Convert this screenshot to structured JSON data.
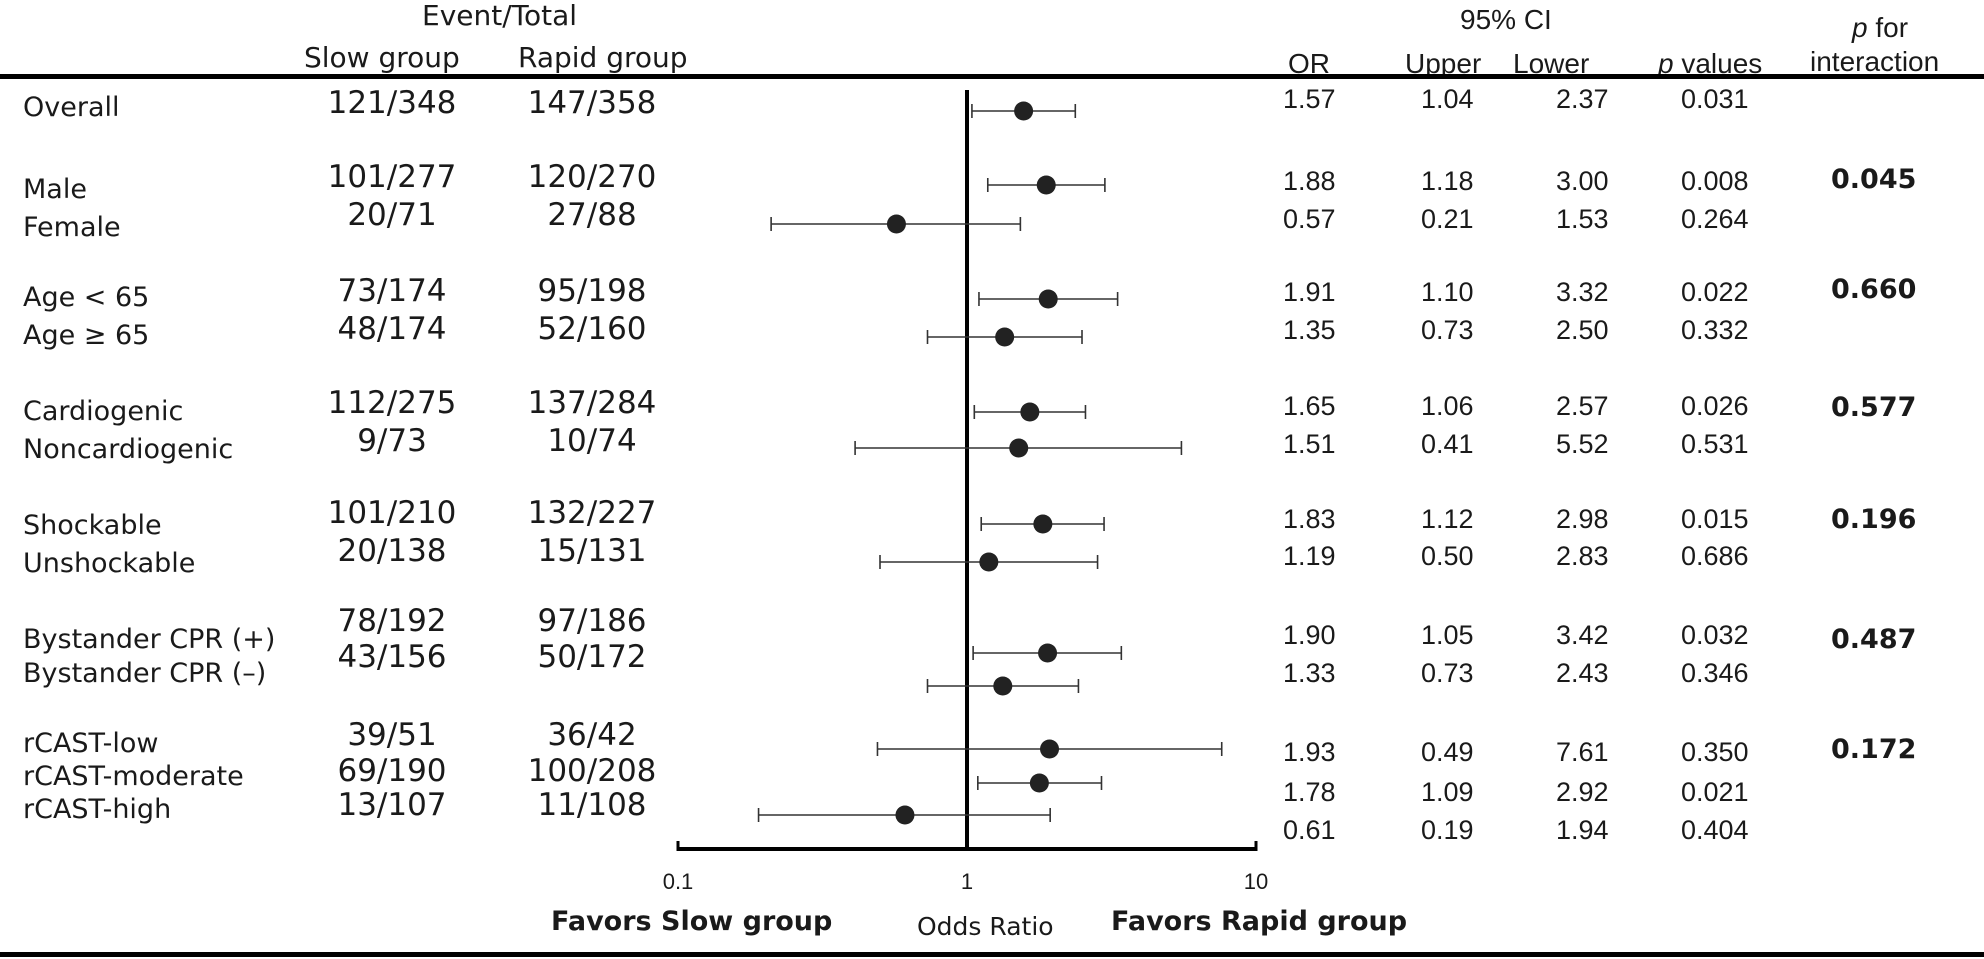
{
  "headers": {
    "event_total": "Event/Total",
    "slow_group": "Slow group",
    "rapid_group": "Rapid group",
    "or": "OR",
    "ci95": "95% CI",
    "upper": "Upper",
    "lower": "Lower",
    "p_values_italic": "p",
    "p_values_rest": " values",
    "p_for_italic": "p",
    "p_for_rest": " for",
    "interaction": "interaction"
  },
  "footer": {
    "favors_slow": "Favors Slow group",
    "odds_ratio": "Odds Ratio",
    "favors_rapid": "Favors Rapid group"
  },
  "p_interaction": [
    "0.045",
    "0.660",
    "0.577",
    "0.196",
    "0.487",
    "0.172"
  ],
  "chart_data": {
    "type": "forest",
    "xlabel": "Odds Ratio",
    "x_scale": "log",
    "xlim": [
      0.1,
      10
    ],
    "x_ticks": [
      "0.1",
      "1",
      "10"
    ],
    "reference_line": 1,
    "rows": [
      {
        "label": "Overall",
        "slow": "121/348",
        "rapid": "147/358",
        "or": "1.57",
        "upper": "1.04",
        "lower": "2.37",
        "p": "0.031",
        "or_val": 1.57,
        "ci_lo": 1.04,
        "ci_hi": 2.37
      },
      {
        "label": "Male",
        "slow": "101/277",
        "rapid": "120/270",
        "or": "1.88",
        "upper": "1.18",
        "lower": "3.00",
        "p": "0.008",
        "or_val": 1.88,
        "ci_lo": 1.18,
        "ci_hi": 3.0
      },
      {
        "label": "Female",
        "slow": "20/71",
        "rapid": "27/88",
        "or": "0.57",
        "upper": "0.21",
        "lower": "1.53",
        "p": "0.264",
        "or_val": 0.57,
        "ci_lo": 0.21,
        "ci_hi": 1.53
      },
      {
        "label": "Age < 65",
        "slow": "73/174",
        "rapid": "95/198",
        "or": "1.91",
        "upper": "1.10",
        "lower": "3.32",
        "p": "0.022",
        "or_val": 1.91,
        "ci_lo": 1.1,
        "ci_hi": 3.32
      },
      {
        "label": "Age ≥ 65",
        "slow": "48/174",
        "rapid": "52/160",
        "or": "1.35",
        "upper": "0.73",
        "lower": "2.50",
        "p": "0.332",
        "or_val": 1.35,
        "ci_lo": 0.73,
        "ci_hi": 2.5
      },
      {
        "label": "Cardiogenic",
        "slow": "112/275",
        "rapid": "137/284",
        "or": "1.65",
        "upper": "1.06",
        "lower": "2.57",
        "p": "0.026",
        "or_val": 1.65,
        "ci_lo": 1.06,
        "ci_hi": 2.57
      },
      {
        "label": "Noncardiogenic",
        "slow": "9/73",
        "rapid": "10/74",
        "or": "1.51",
        "upper": "0.41",
        "lower": "5.52",
        "p": "0.531",
        "or_val": 1.51,
        "ci_lo": 0.41,
        "ci_hi": 5.52
      },
      {
        "label": "Shockable",
        "slow": "101/210",
        "rapid": "132/227",
        "or": "1.83",
        "upper": "1.12",
        "lower": "2.98",
        "p": "0.015",
        "or_val": 1.83,
        "ci_lo": 1.12,
        "ci_hi": 2.98
      },
      {
        "label": "Unshockable",
        "slow": "20/138",
        "rapid": "15/131",
        "or": "1.19",
        "upper": "0.50",
        "lower": "2.83",
        "p": "0.686",
        "or_val": 1.19,
        "ci_lo": 0.5,
        "ci_hi": 2.83
      },
      {
        "label": "Bystander CPR (+)",
        "slow": "78/192",
        "rapid": "97/186",
        "or": "1.90",
        "upper": "1.05",
        "lower": "3.42",
        "p": "0.032",
        "or_val": 1.9,
        "ci_lo": 1.05,
        "ci_hi": 3.42
      },
      {
        "label": "Bystander CPR (–)",
        "slow": "43/156",
        "rapid": "50/172",
        "or": "1.33",
        "upper": "0.73",
        "lower": "2.43",
        "p": "0.346",
        "or_val": 1.33,
        "ci_lo": 0.73,
        "ci_hi": 2.43
      },
      {
        "label": "rCAST-low",
        "slow": "39/51",
        "rapid": "36/42",
        "or": "1.93",
        "upper": "0.49",
        "lower": "7.61",
        "p": "0.350",
        "or_val": 1.93,
        "ci_lo": 0.49,
        "ci_hi": 7.61
      },
      {
        "label": "rCAST-moderate",
        "slow": "69/190",
        "rapid": "100/208",
        "or": "1.78",
        "upper": "1.09",
        "lower": "2.92",
        "p": "0.021",
        "or_val": 1.78,
        "ci_lo": 1.09,
        "ci_hi": 2.92
      },
      {
        "label": "rCAST-high",
        "slow": "13/107",
        "rapid": "11/108",
        "or": "0.61",
        "upper": "0.19",
        "lower": "1.94",
        "p": "0.404",
        "or_val": 0.61,
        "ci_lo": 0.19,
        "ci_hi": 1.94
      }
    ]
  }
}
